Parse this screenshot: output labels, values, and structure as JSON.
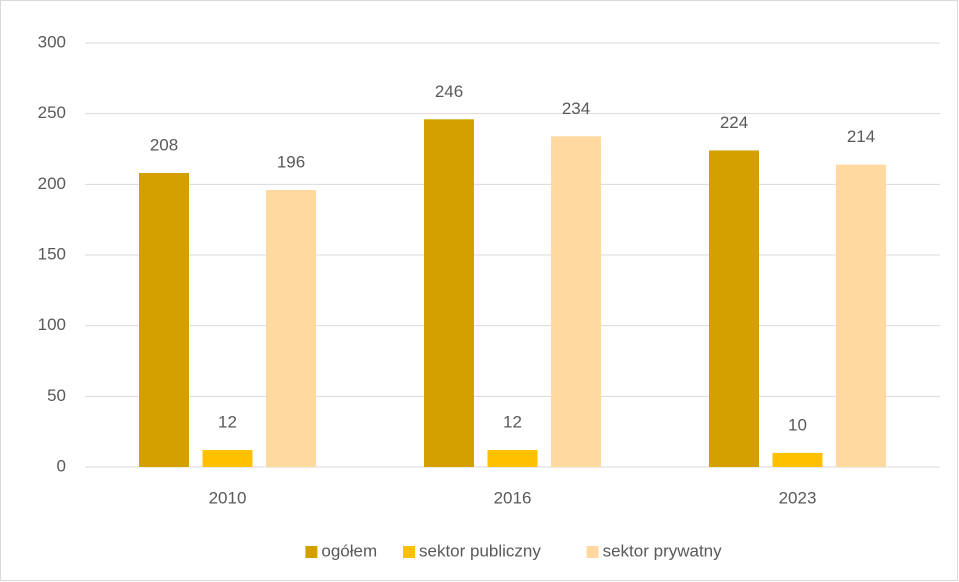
{
  "chart_data": {
    "type": "bar",
    "categories": [
      "2010",
      "2016",
      "2023"
    ],
    "series": [
      {
        "name": "ogółem",
        "color": "#d4a000",
        "values": [
          208,
          246,
          224
        ]
      },
      {
        "name": "sektor publiczny",
        "color": "#ffc000",
        "values": [
          12,
          12,
          10
        ]
      },
      {
        "name": "sektor prywatny",
        "color": "#ffd9a0",
        "values": [
          196,
          234,
          214
        ]
      }
    ],
    "ylim": [
      0,
      300
    ],
    "yticks": [
      0,
      50,
      100,
      150,
      200,
      250,
      300
    ],
    "grid": true,
    "legend": "bottom"
  }
}
